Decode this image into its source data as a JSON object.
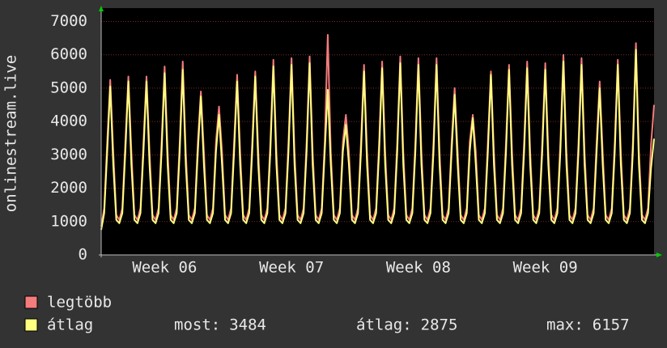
{
  "chart_data": {
    "type": "line",
    "ylabel": "onlinestream.live",
    "ylim": [
      0,
      7400
    ],
    "yticks": [
      0,
      1000,
      2000,
      3000,
      4000,
      5000,
      6000,
      7000
    ],
    "grid": true,
    "categories": [
      null,
      null,
      null,
      null,
      null,
      null,
      null,
      null,
      null,
      null,
      null,
      null,
      null,
      null,
      null,
      null,
      null,
      null,
      null,
      null,
      null,
      "Week 06",
      null,
      null,
      null,
      null,
      null,
      null,
      null,
      null,
      null,
      null,
      null,
      null,
      null,
      null,
      null,
      null,
      null,
      null,
      null,
      null,
      null,
      null,
      null,
      null,
      null,
      null,
      null,
      null,
      null,
      null,
      null,
      null,
      null,
      null,
      null,
      null,
      null,
      null,
      null,
      null,
      null,
      "Week 07",
      null,
      null,
      null,
      null,
      null,
      null,
      null,
      null,
      null,
      null,
      null,
      null,
      null,
      null,
      null,
      null,
      null,
      null,
      null,
      null,
      null,
      null,
      null,
      null,
      null,
      null,
      null,
      null,
      null,
      null,
      null,
      null,
      null,
      null,
      null,
      null,
      null,
      null,
      null,
      null,
      null,
      "Week 08",
      null,
      null,
      null,
      null,
      null,
      null,
      null,
      null,
      null,
      null,
      null,
      null,
      null,
      null,
      null,
      null,
      null,
      null,
      null,
      null,
      null,
      null,
      null,
      null,
      null,
      null,
      null,
      null,
      null,
      null,
      null,
      null,
      null,
      null,
      null,
      null,
      null,
      null,
      null,
      null,
      null,
      "Week 09",
      null,
      null,
      null,
      null,
      null,
      null,
      null,
      null,
      null,
      null,
      null,
      null,
      null,
      null,
      null,
      null,
      null,
      null,
      null,
      null,
      null,
      null,
      null,
      null,
      null,
      null,
      null,
      null,
      null,
      null,
      null,
      null,
      null,
      null,
      null,
      null
    ],
    "series": [
      {
        "name": "legtöbb",
        "color": "#f47c7c",
        "values": [
          850,
          1400,
          3400,
          5250,
          3100,
          1200,
          1050,
          1400,
          3400,
          5350,
          3100,
          1200,
          1050,
          1400,
          3400,
          5350,
          3100,
          1200,
          1050,
          1400,
          3400,
          5650,
          3100,
          1200,
          1050,
          1400,
          3400,
          5800,
          3100,
          1200,
          1050,
          1400,
          3400,
          4900,
          3100,
          1200,
          1050,
          1400,
          3400,
          4450,
          3100,
          1200,
          1050,
          1400,
          3400,
          5400,
          3100,
          1200,
          1050,
          1400,
          3400,
          5500,
          3100,
          1200,
          1050,
          1400,
          3400,
          5850,
          3100,
          1200,
          1050,
          1400,
          3400,
          5900,
          3100,
          1200,
          1050,
          1400,
          3400,
          5950,
          3100,
          1200,
          1050,
          1400,
          3400,
          6600,
          3100,
          1200,
          1050,
          1400,
          3400,
          4200,
          3100,
          1200,
          1050,
          1400,
          3400,
          5700,
          3100,
          1200,
          1050,
          1400,
          3400,
          5800,
          3100,
          1200,
          1050,
          1400,
          3400,
          5950,
          3100,
          1200,
          1050,
          1400,
          3400,
          5900,
          3100,
          1200,
          1050,
          1400,
          3400,
          5900,
          3100,
          1200,
          1050,
          1400,
          3400,
          5000,
          3100,
          1200,
          1050,
          1400,
          3400,
          4200,
          3100,
          1200,
          1050,
          1400,
          3400,
          5500,
          3100,
          1200,
          1050,
          1400,
          3400,
          5700,
          3100,
          1200,
          1050,
          1400,
          3400,
          5800,
          3100,
          1200,
          1050,
          1400,
          3400,
          5750,
          3100,
          1200,
          1050,
          1400,
          3400,
          6000,
          3100,
          1200,
          1050,
          1400,
          3400,
          5900,
          3100,
          1200,
          1050,
          1400,
          3400,
          5200,
          3100,
          1200,
          1050,
          1400,
          3400,
          5850,
          3100,
          1200,
          1050,
          1400,
          3400,
          6350,
          3100,
          1200,
          1050,
          1400,
          3300,
          4500
        ]
      },
      {
        "name": "átlag",
        "color": "#ffff80",
        "values": [
          750,
          1250,
          3100,
          5050,
          2700,
          1050,
          950,
          1250,
          3100,
          5200,
          2700,
          1050,
          950,
          1250,
          3100,
          5200,
          2700,
          1050,
          950,
          1250,
          3100,
          5450,
          2700,
          1050,
          950,
          1250,
          3100,
          5550,
          2700,
          1050,
          950,
          1250,
          3100,
          4750,
          2700,
          1050,
          950,
          1250,
          3100,
          4200,
          2700,
          1050,
          950,
          1250,
          3100,
          5200,
          2700,
          1050,
          950,
          1250,
          3100,
          5350,
          2700,
          1050,
          950,
          1250,
          3100,
          5650,
          2700,
          1050,
          950,
          1250,
          3100,
          5700,
          2700,
          1050,
          950,
          1250,
          3100,
          5750,
          2700,
          1050,
          950,
          1250,
          3100,
          4950,
          2700,
          1050,
          950,
          1250,
          3100,
          3900,
          2700,
          1050,
          950,
          1250,
          3100,
          5500,
          2700,
          1050,
          950,
          1250,
          3100,
          5600,
          2700,
          1050,
          950,
          1250,
          3100,
          5750,
          2700,
          1050,
          950,
          1250,
          3100,
          5700,
          2700,
          1050,
          950,
          1250,
          3100,
          5700,
          2700,
          1050,
          950,
          1250,
          3100,
          4800,
          2700,
          1050,
          950,
          1250,
          3100,
          4100,
          2700,
          1050,
          950,
          1250,
          3100,
          5400,
          2700,
          1050,
          950,
          1250,
          3100,
          5550,
          2700,
          1050,
          950,
          1250,
          3100,
          5600,
          2700,
          1050,
          950,
          1250,
          3100,
          5550,
          2700,
          1050,
          950,
          1250,
          3100,
          5800,
          2700,
          1050,
          950,
          1250,
          3100,
          5700,
          2700,
          1050,
          950,
          1250,
          3100,
          5000,
          2700,
          1050,
          950,
          1250,
          3100,
          5700,
          2700,
          1050,
          950,
          1250,
          3100,
          6150,
          2700,
          1050,
          950,
          1250,
          2600,
          3484
        ]
      }
    ],
    "stats": [
      {
        "label": "most:",
        "value": 3484
      },
      {
        "label": "átlag:",
        "value": 2875
      },
      {
        "label": "max:",
        "value": 6157
      }
    ]
  }
}
